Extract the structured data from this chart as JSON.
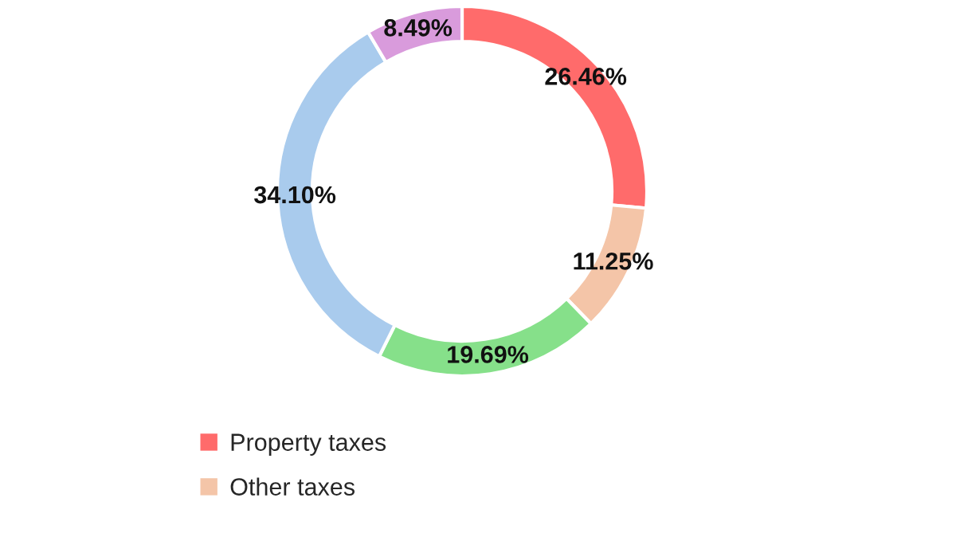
{
  "chart_data": {
    "type": "donut",
    "categories": [
      "Property taxes",
      "Other taxes",
      null,
      null,
      null
    ],
    "values": [
      26.46,
      11.25,
      19.69,
      34.1,
      8.49
    ],
    "value_labels": [
      "26.46%",
      "11.25%",
      "19.69%",
      "34.10%",
      "8.49%"
    ],
    "colors": [
      "#ff6b6b",
      "#f4c5a8",
      "#86e08a",
      "#a9cbed",
      "#d99bdc"
    ],
    "legend": "bottom left"
  }
}
